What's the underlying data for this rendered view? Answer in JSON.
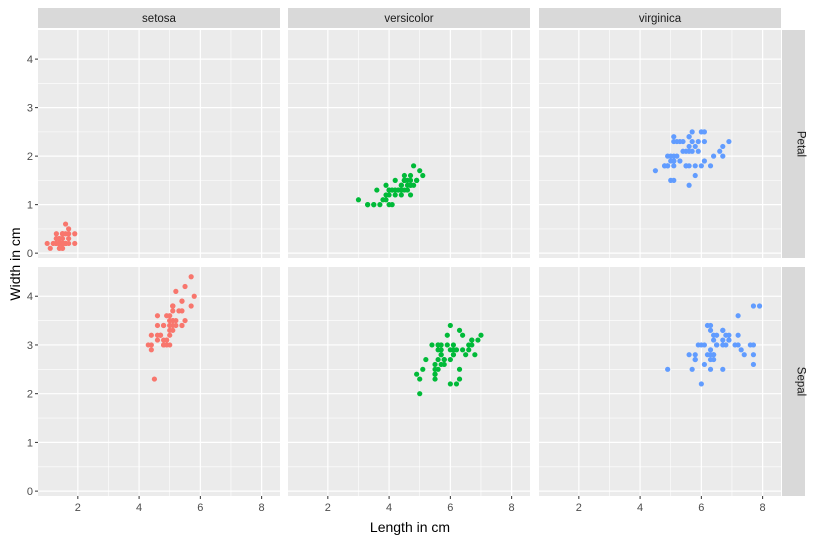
{
  "chart_data": {
    "type": "scatter",
    "xlabel": "Length in cm",
    "ylabel": "Width in cm",
    "xlim": [
      0.7,
      8.6
    ],
    "ylim": [
      -0.1,
      4.6
    ],
    "x_ticks": [
      2,
      4,
      6,
      8
    ],
    "y_ticks": [
      0,
      1,
      2,
      3,
      4
    ],
    "grid": true,
    "column_facets": [
      "setosa",
      "versicolor",
      "virginica"
    ],
    "row_facets": [
      "Petal",
      "Sepal"
    ],
    "colors": {
      "setosa": "#F8766D",
      "versicolor": "#00BA38",
      "virginica": "#619CFF"
    },
    "panels": [
      {
        "row": "Petal",
        "col": "setosa",
        "points": [
          [
            1.4,
            0.2
          ],
          [
            1.4,
            0.2
          ],
          [
            1.3,
            0.2
          ],
          [
            1.5,
            0.2
          ],
          [
            1.4,
            0.2
          ],
          [
            1.7,
            0.4
          ],
          [
            1.4,
            0.3
          ],
          [
            1.5,
            0.2
          ],
          [
            1.4,
            0.2
          ],
          [
            1.5,
            0.1
          ],
          [
            1.5,
            0.2
          ],
          [
            1.6,
            0.2
          ],
          [
            1.4,
            0.1
          ],
          [
            1.1,
            0.1
          ],
          [
            1.2,
            0.2
          ],
          [
            1.5,
            0.4
          ],
          [
            1.3,
            0.4
          ],
          [
            1.4,
            0.3
          ],
          [
            1.7,
            0.3
          ],
          [
            1.5,
            0.3
          ],
          [
            1.7,
            0.2
          ],
          [
            1.5,
            0.4
          ],
          [
            1.0,
            0.2
          ],
          [
            1.7,
            0.5
          ],
          [
            1.9,
            0.2
          ],
          [
            1.6,
            0.2
          ],
          [
            1.6,
            0.4
          ],
          [
            1.5,
            0.2
          ],
          [
            1.4,
            0.2
          ],
          [
            1.6,
            0.2
          ],
          [
            1.6,
            0.2
          ],
          [
            1.5,
            0.4
          ],
          [
            1.5,
            0.1
          ],
          [
            1.4,
            0.2
          ],
          [
            1.5,
            0.2
          ],
          [
            1.2,
            0.2
          ],
          [
            1.3,
            0.2
          ],
          [
            1.4,
            0.1
          ],
          [
            1.3,
            0.2
          ],
          [
            1.5,
            0.2
          ],
          [
            1.3,
            0.3
          ],
          [
            1.3,
            0.3
          ],
          [
            1.3,
            0.2
          ],
          [
            1.6,
            0.6
          ],
          [
            1.9,
            0.4
          ],
          [
            1.4,
            0.3
          ],
          [
            1.6,
            0.2
          ],
          [
            1.4,
            0.2
          ],
          [
            1.5,
            0.2
          ],
          [
            1.4,
            0.2
          ]
        ]
      },
      {
        "row": "Petal",
        "col": "versicolor",
        "points": [
          [
            4.7,
            1.4
          ],
          [
            4.5,
            1.5
          ],
          [
            4.9,
            1.5
          ],
          [
            4.0,
            1.3
          ],
          [
            4.6,
            1.5
          ],
          [
            4.5,
            1.3
          ],
          [
            4.7,
            1.6
          ],
          [
            3.3,
            1.0
          ],
          [
            4.6,
            1.3
          ],
          [
            3.9,
            1.4
          ],
          [
            3.5,
            1.0
          ],
          [
            4.2,
            1.5
          ],
          [
            4.0,
            1.0
          ],
          [
            4.7,
            1.4
          ],
          [
            3.6,
            1.3
          ],
          [
            4.4,
            1.4
          ],
          [
            4.5,
            1.5
          ],
          [
            4.1,
            1.0
          ],
          [
            4.5,
            1.5
          ],
          [
            3.9,
            1.1
          ],
          [
            4.8,
            1.8
          ],
          [
            4.0,
            1.3
          ],
          [
            4.9,
            1.5
          ],
          [
            4.7,
            1.2
          ],
          [
            4.3,
            1.3
          ],
          [
            4.4,
            1.4
          ],
          [
            4.8,
            1.4
          ],
          [
            5.0,
            1.7
          ],
          [
            4.5,
            1.5
          ],
          [
            3.5,
            1.0
          ],
          [
            3.8,
            1.1
          ],
          [
            3.7,
            1.0
          ],
          [
            3.9,
            1.2
          ],
          [
            5.1,
            1.6
          ],
          [
            4.5,
            1.5
          ],
          [
            4.5,
            1.6
          ],
          [
            4.7,
            1.5
          ],
          [
            4.4,
            1.3
          ],
          [
            4.1,
            1.3
          ],
          [
            4.0,
            1.3
          ],
          [
            4.4,
            1.2
          ],
          [
            4.6,
            1.4
          ],
          [
            4.0,
            1.2
          ],
          [
            3.3,
            1.0
          ],
          [
            4.2,
            1.3
          ],
          [
            4.2,
            1.2
          ],
          [
            4.2,
            1.3
          ],
          [
            4.3,
            1.3
          ],
          [
            3.0,
            1.1
          ],
          [
            4.1,
            1.3
          ]
        ]
      },
      {
        "row": "Petal",
        "col": "virginica",
        "points": [
          [
            6.0,
            2.5
          ],
          [
            5.1,
            1.9
          ],
          [
            5.9,
            2.1
          ],
          [
            5.6,
            1.8
          ],
          [
            5.8,
            2.2
          ],
          [
            6.6,
            2.1
          ],
          [
            4.5,
            1.7
          ],
          [
            6.3,
            1.8
          ],
          [
            5.8,
            1.8
          ],
          [
            6.1,
            2.5
          ],
          [
            5.1,
            2.0
          ],
          [
            5.3,
            1.9
          ],
          [
            5.5,
            2.1
          ],
          [
            5.0,
            2.0
          ],
          [
            5.1,
            2.4
          ],
          [
            5.3,
            2.3
          ],
          [
            5.5,
            1.8
          ],
          [
            6.7,
            2.2
          ],
          [
            6.9,
            2.3
          ],
          [
            5.0,
            1.5
          ],
          [
            5.7,
            2.3
          ],
          [
            4.9,
            2.0
          ],
          [
            6.7,
            2.0
          ],
          [
            4.9,
            1.8
          ],
          [
            5.7,
            2.1
          ],
          [
            6.0,
            1.8
          ],
          [
            4.8,
            1.8
          ],
          [
            4.9,
            1.8
          ],
          [
            5.6,
            2.1
          ],
          [
            5.8,
            1.6
          ],
          [
            6.1,
            1.9
          ],
          [
            6.4,
            2.0
          ],
          [
            5.6,
            2.2
          ],
          [
            5.1,
            1.5
          ],
          [
            5.6,
            1.4
          ],
          [
            6.1,
            2.3
          ],
          [
            5.6,
            2.4
          ],
          [
            5.5,
            1.8
          ],
          [
            4.8,
            1.8
          ],
          [
            5.4,
            2.1
          ],
          [
            5.6,
            2.4
          ],
          [
            5.1,
            2.3
          ],
          [
            5.1,
            1.9
          ],
          [
            5.9,
            2.3
          ],
          [
            5.7,
            2.5
          ],
          [
            5.2,
            2.3
          ],
          [
            5.0,
            1.9
          ],
          [
            5.2,
            2.0
          ],
          [
            5.4,
            2.3
          ],
          [
            5.1,
            1.8
          ]
        ]
      },
      {
        "row": "Sepal",
        "col": "setosa",
        "points": [
          [
            5.1,
            3.5
          ],
          [
            4.9,
            3.0
          ],
          [
            4.7,
            3.2
          ],
          [
            4.6,
            3.1
          ],
          [
            5.0,
            3.6
          ],
          [
            5.4,
            3.9
          ],
          [
            4.6,
            3.4
          ],
          [
            5.0,
            3.4
          ],
          [
            4.4,
            2.9
          ],
          [
            4.9,
            3.1
          ],
          [
            5.4,
            3.7
          ],
          [
            4.8,
            3.4
          ],
          [
            4.8,
            3.0
          ],
          [
            4.3,
            3.0
          ],
          [
            5.8,
            4.0
          ],
          [
            5.7,
            4.4
          ],
          [
            5.4,
            3.9
          ],
          [
            5.1,
            3.5
          ],
          [
            5.7,
            3.8
          ],
          [
            5.1,
            3.8
          ],
          [
            5.4,
            3.4
          ],
          [
            5.1,
            3.7
          ],
          [
            4.6,
            3.6
          ],
          [
            5.1,
            3.3
          ],
          [
            4.8,
            3.4
          ],
          [
            5.0,
            3.0
          ],
          [
            5.0,
            3.4
          ],
          [
            5.2,
            3.5
          ],
          [
            5.2,
            3.4
          ],
          [
            4.7,
            3.2
          ],
          [
            4.8,
            3.1
          ],
          [
            5.4,
            3.4
          ],
          [
            5.2,
            4.1
          ],
          [
            5.5,
            4.2
          ],
          [
            4.9,
            3.1
          ],
          [
            5.0,
            3.2
          ],
          [
            5.5,
            3.5
          ],
          [
            4.9,
            3.6
          ],
          [
            4.4,
            3.0
          ],
          [
            5.1,
            3.4
          ],
          [
            5.0,
            3.5
          ],
          [
            4.5,
            2.3
          ],
          [
            4.4,
            3.2
          ],
          [
            5.0,
            3.5
          ],
          [
            5.1,
            3.8
          ],
          [
            4.8,
            3.0
          ],
          [
            5.1,
            3.8
          ],
          [
            4.6,
            3.2
          ],
          [
            5.3,
            3.7
          ],
          [
            5.0,
            3.3
          ]
        ]
      },
      {
        "row": "Sepal",
        "col": "versicolor",
        "points": [
          [
            7.0,
            3.2
          ],
          [
            6.4,
            3.2
          ],
          [
            6.9,
            3.1
          ],
          [
            5.5,
            2.3
          ],
          [
            6.5,
            2.8
          ],
          [
            5.7,
            2.8
          ],
          [
            6.3,
            3.3
          ],
          [
            4.9,
            2.4
          ],
          [
            6.6,
            2.9
          ],
          [
            5.2,
            2.7
          ],
          [
            5.0,
            2.0
          ],
          [
            5.9,
            3.0
          ],
          [
            6.0,
            2.2
          ],
          [
            6.1,
            2.9
          ],
          [
            5.6,
            2.9
          ],
          [
            6.7,
            3.1
          ],
          [
            5.6,
            3.0
          ],
          [
            5.8,
            2.7
          ],
          [
            6.2,
            2.2
          ],
          [
            5.6,
            2.5
          ],
          [
            5.9,
            3.2
          ],
          [
            6.1,
            2.8
          ],
          [
            6.3,
            2.5
          ],
          [
            6.1,
            2.8
          ],
          [
            6.4,
            2.9
          ],
          [
            6.6,
            3.0
          ],
          [
            6.8,
            2.8
          ],
          [
            6.7,
            3.0
          ],
          [
            6.0,
            2.9
          ],
          [
            5.7,
            2.6
          ],
          [
            5.5,
            2.4
          ],
          [
            5.5,
            2.4
          ],
          [
            5.8,
            2.7
          ],
          [
            6.0,
            2.7
          ],
          [
            5.4,
            3.0
          ],
          [
            6.0,
            3.4
          ],
          [
            6.7,
            3.1
          ],
          [
            6.3,
            2.3
          ],
          [
            5.6,
            3.0
          ],
          [
            5.5,
            2.5
          ],
          [
            5.5,
            2.6
          ],
          [
            6.1,
            3.0
          ],
          [
            5.8,
            2.6
          ],
          [
            5.0,
            2.3
          ],
          [
            5.6,
            2.7
          ],
          [
            5.7,
            3.0
          ],
          [
            5.7,
            2.9
          ],
          [
            6.2,
            2.9
          ],
          [
            5.1,
            2.5
          ],
          [
            5.7,
            2.8
          ]
        ]
      },
      {
        "row": "Sepal",
        "col": "virginica",
        "points": [
          [
            6.3,
            3.3
          ],
          [
            5.8,
            2.7
          ],
          [
            7.1,
            3.0
          ],
          [
            6.3,
            2.9
          ],
          [
            6.5,
            3.0
          ],
          [
            7.6,
            3.0
          ],
          [
            4.9,
            2.5
          ],
          [
            7.3,
            2.9
          ],
          [
            6.7,
            2.5
          ],
          [
            7.2,
            3.6
          ],
          [
            6.5,
            3.2
          ],
          [
            6.4,
            2.7
          ],
          [
            6.8,
            3.0
          ],
          [
            5.7,
            2.5
          ],
          [
            5.8,
            2.8
          ],
          [
            6.4,
            3.2
          ],
          [
            6.5,
            3.0
          ],
          [
            7.7,
            3.8
          ],
          [
            7.7,
            2.6
          ],
          [
            6.0,
            2.2
          ],
          [
            6.9,
            3.2
          ],
          [
            5.6,
            2.8
          ],
          [
            7.7,
            2.8
          ],
          [
            6.3,
            2.7
          ],
          [
            6.7,
            3.3
          ],
          [
            7.2,
            3.2
          ],
          [
            6.2,
            2.8
          ],
          [
            6.1,
            3.0
          ],
          [
            6.4,
            2.8
          ],
          [
            7.2,
            3.0
          ],
          [
            7.4,
            2.8
          ],
          [
            7.9,
            3.8
          ],
          [
            6.4,
            2.8
          ],
          [
            6.3,
            2.8
          ],
          [
            6.1,
            2.6
          ],
          [
            7.7,
            3.0
          ],
          [
            6.3,
            3.4
          ],
          [
            6.4,
            3.1
          ],
          [
            6.0,
            3.0
          ],
          [
            6.9,
            3.1
          ],
          [
            6.7,
            3.1
          ],
          [
            6.9,
            3.1
          ],
          [
            5.8,
            2.7
          ],
          [
            6.8,
            3.2
          ],
          [
            6.7,
            3.3
          ],
          [
            6.7,
            3.0
          ],
          [
            6.3,
            2.5
          ],
          [
            6.5,
            3.0
          ],
          [
            6.2,
            3.4
          ],
          [
            5.9,
            3.0
          ]
        ]
      }
    ]
  }
}
